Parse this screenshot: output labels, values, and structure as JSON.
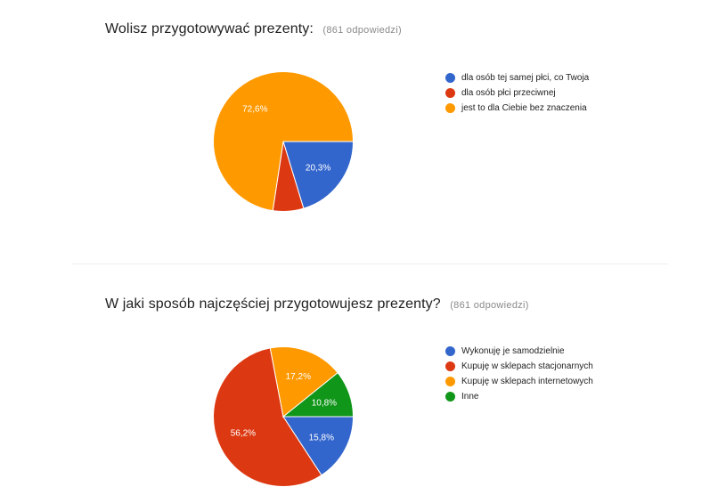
{
  "chart_data": [
    {
      "type": "pie",
      "title": "Wolisz przygotowywać prezenty:",
      "response_count": "(861 odpowiedzi)",
      "series": [
        {
          "name": "dla osób tej samej płci, co Twoja",
          "value": 20.3,
          "label": "20,3%",
          "color": "#3366cc"
        },
        {
          "name": "dla osób płci przeciwnej",
          "value": 7.1,
          "label": "",
          "color": "#dc3912"
        },
        {
          "name": "jest to dla Ciebie bez znaczenia",
          "value": 72.6,
          "label": "72,6%",
          "color": "#ff9900"
        }
      ],
      "legend_position": "right"
    },
    {
      "type": "pie",
      "title": "W jaki sposób najczęściej przygotowujesz prezenty?",
      "response_count": "(861 odpowiedzi)",
      "series": [
        {
          "name": "Wykonuję je samodzielnie",
          "value": 15.8,
          "label": "15,8%",
          "color": "#3366cc"
        },
        {
          "name": "Kupuję w sklepach stacjonarnych",
          "value": 56.2,
          "label": "56,2%",
          "color": "#dc3912"
        },
        {
          "name": "Kupuję w sklepach internetowych",
          "value": 17.2,
          "label": "17,2%",
          "color": "#ff9900"
        },
        {
          "name": "Inne",
          "value": 10.8,
          "label": "10,8%",
          "color": "#109618"
        }
      ],
      "legend_position": "right"
    }
  ]
}
